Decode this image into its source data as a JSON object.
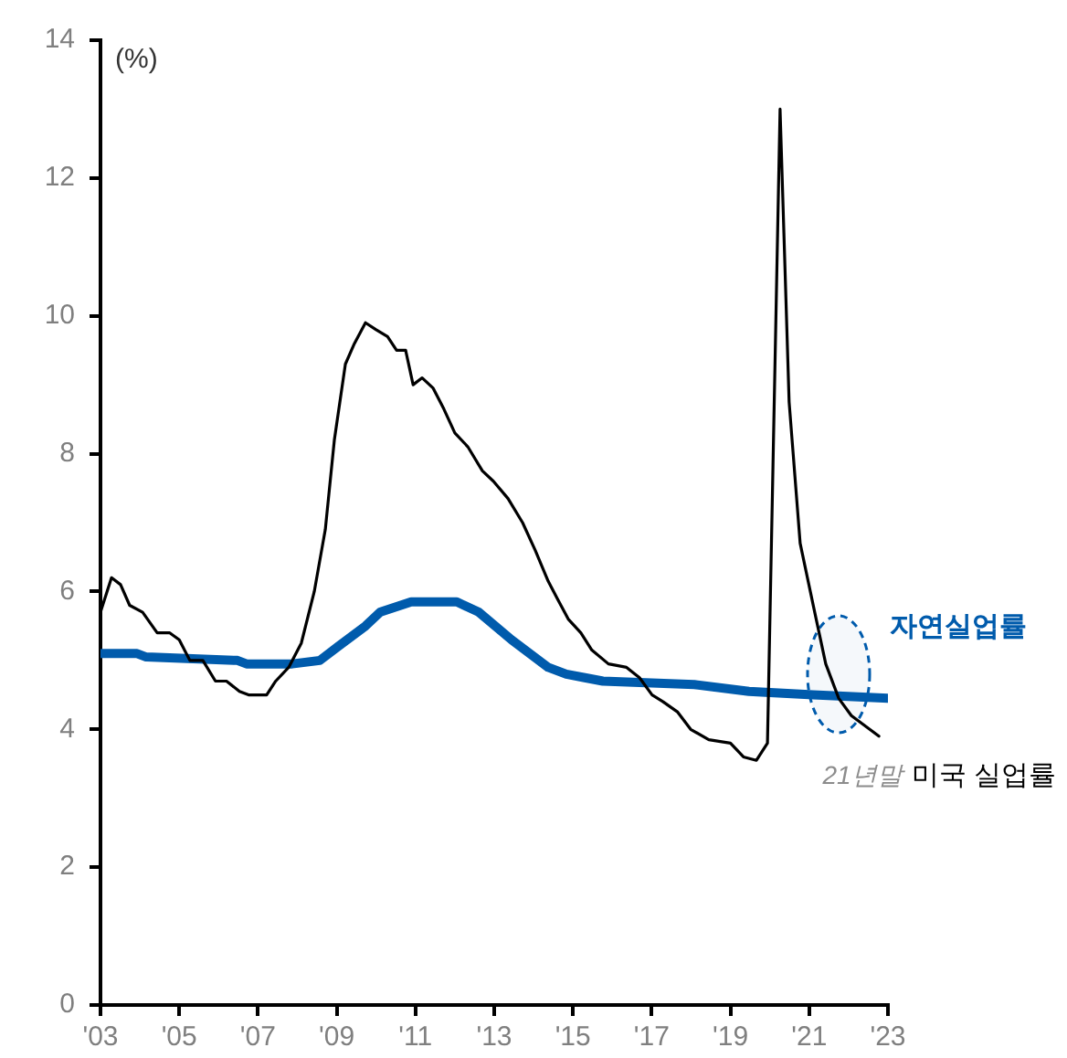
{
  "chart_data": {
    "type": "line",
    "ylabel": "(%)",
    "xlim": [
      2003,
      2023
    ],
    "xticks": [
      {
        "value": 2003,
        "label": "'03"
      },
      {
        "value": 2005,
        "label": "'05"
      },
      {
        "value": 2007,
        "label": "'07"
      },
      {
        "value": 2009,
        "label": "'09"
      },
      {
        "value": 2011,
        "label": "'11"
      },
      {
        "value": 2013,
        "label": "'13"
      },
      {
        "value": 2015,
        "label": "'15"
      },
      {
        "value": 2017,
        "label": "'17"
      },
      {
        "value": 2019,
        "label": "'19"
      },
      {
        "value": 2021,
        "label": "'21"
      },
      {
        "value": 2023,
        "label": "'23"
      }
    ],
    "ylim": [
      0,
      14
    ],
    "yticks": [
      0,
      2,
      4,
      6,
      8,
      10,
      12,
      14
    ],
    "grid": false,
    "legend": false,
    "series": [
      {
        "name": "미국 실업률",
        "color": "#000000",
        "x": [
          2003.0,
          2003.28,
          2003.51,
          2003.74,
          2004.07,
          2004.44,
          2004.76,
          2005.0,
          2005.27,
          2005.6,
          2005.92,
          2006.2,
          2006.53,
          2006.76,
          2007.22,
          2007.45,
          2007.78,
          2008.1,
          2008.43,
          2008.71,
          2008.94,
          2009.22,
          2009.45,
          2009.73,
          2010.0,
          2010.29,
          2010.52,
          2010.75,
          2010.94,
          2011.17,
          2011.45,
          2011.72,
          2012.0,
          2012.33,
          2012.7,
          2012.98,
          2013.35,
          2013.72,
          2014.04,
          2014.37,
          2014.6,
          2014.88,
          2015.2,
          2015.48,
          2015.9,
          2016.36,
          2016.69,
          2017.01,
          2017.29,
          2017.66,
          2017.99,
          2018.45,
          2019.0,
          2019.33,
          2019.66,
          2019.94,
          2020.26,
          2020.49,
          2020.77,
          2021.14,
          2021.42,
          2021.75,
          2022.07,
          2022.77
        ],
        "values": [
          5.7,
          6.2,
          6.1,
          5.8,
          5.7,
          5.4,
          5.4,
          5.3,
          5.0,
          5.0,
          4.7,
          4.7,
          4.55,
          4.5,
          4.5,
          4.7,
          4.9,
          5.25,
          6.0,
          6.9,
          8.2,
          9.3,
          9.6,
          9.9,
          9.8,
          9.7,
          9.5,
          9.5,
          9.0,
          9.1,
          8.95,
          8.65,
          8.3,
          8.1,
          7.75,
          7.6,
          7.35,
          7.0,
          6.6,
          6.15,
          5.9,
          5.6,
          5.4,
          5.15,
          4.95,
          4.9,
          4.75,
          4.5,
          4.4,
          4.25,
          4.0,
          3.85,
          3.8,
          3.6,
          3.55,
          3.8,
          13.0,
          8.75,
          6.7,
          5.7,
          4.95,
          4.45,
          4.2,
          3.9
        ]
      },
      {
        "name": "자연실업률",
        "color": "#005bac",
        "x": [
          2003.0,
          2003.93,
          2004.16,
          2006.48,
          2006.71,
          2007.87,
          2008.57,
          2009.03,
          2009.73,
          2010.1,
          2010.89,
          2012.05,
          2012.61,
          2013.44,
          2014.37,
          2014.83,
          2015.3,
          2015.76,
          2018.08,
          2019.47,
          2021.1,
          2023.0
        ],
        "values": [
          5.1,
          5.1,
          5.05,
          5.0,
          4.95,
          4.95,
          5.0,
          5.2,
          5.5,
          5.7,
          5.85,
          5.85,
          5.7,
          5.3,
          4.9,
          4.8,
          4.75,
          4.7,
          4.65,
          4.55,
          4.5,
          4.45
        ]
      }
    ],
    "annotations": [
      "21년말"
    ]
  }
}
